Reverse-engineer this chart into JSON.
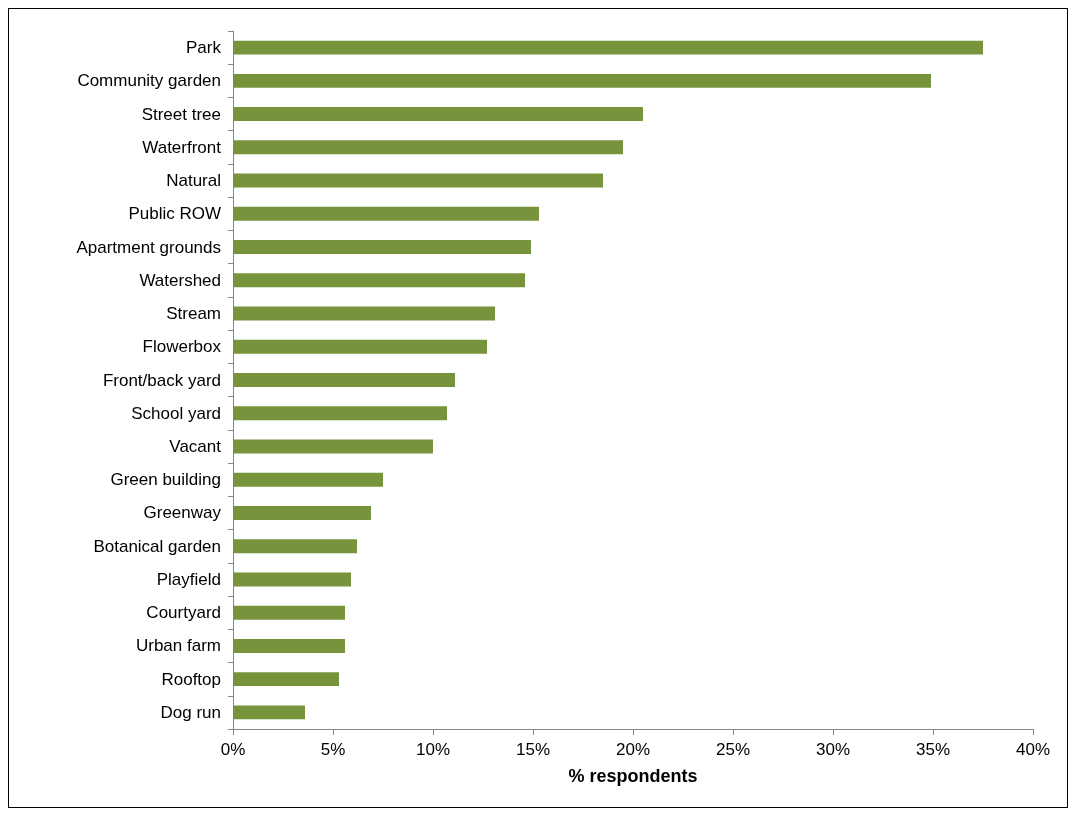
{
  "chart_data": {
    "type": "bar",
    "orientation": "horizontal",
    "xlabel": "% respondents",
    "categories": [
      "Park",
      "Community garden",
      "Street tree",
      "Waterfront",
      "Natural",
      "Public ROW",
      "Apartment grounds",
      "Watershed",
      "Stream",
      "Flowerbox",
      "Front/back yard",
      "School yard",
      "Vacant",
      "Green building",
      "Greenway",
      "Botanical garden",
      "Playfield",
      "Courtyard",
      "Urban farm",
      "Rooftop",
      "Dog run"
    ],
    "values": [
      37.5,
      34.9,
      20.5,
      19.5,
      18.5,
      15.3,
      14.9,
      14.6,
      13.1,
      12.7,
      11.1,
      10.7,
      10.0,
      7.5,
      6.9,
      6.2,
      5.9,
      5.6,
      5.6,
      5.3,
      3.6
    ],
    "color": "#77933c",
    "xlim": [
      0,
      40
    ],
    "xticks": [
      {
        "value": 0,
        "label": "0%"
      },
      {
        "value": 5,
        "label": "5%"
      },
      {
        "value": 10,
        "label": "10%"
      },
      {
        "value": 15,
        "label": "15%"
      },
      {
        "value": 20,
        "label": "20%"
      },
      {
        "value": 25,
        "label": "25%"
      },
      {
        "value": 30,
        "label": "30%"
      },
      {
        "value": 35,
        "label": "35%"
      },
      {
        "value": 40,
        "label": "40%"
      }
    ],
    "grid": false
  }
}
